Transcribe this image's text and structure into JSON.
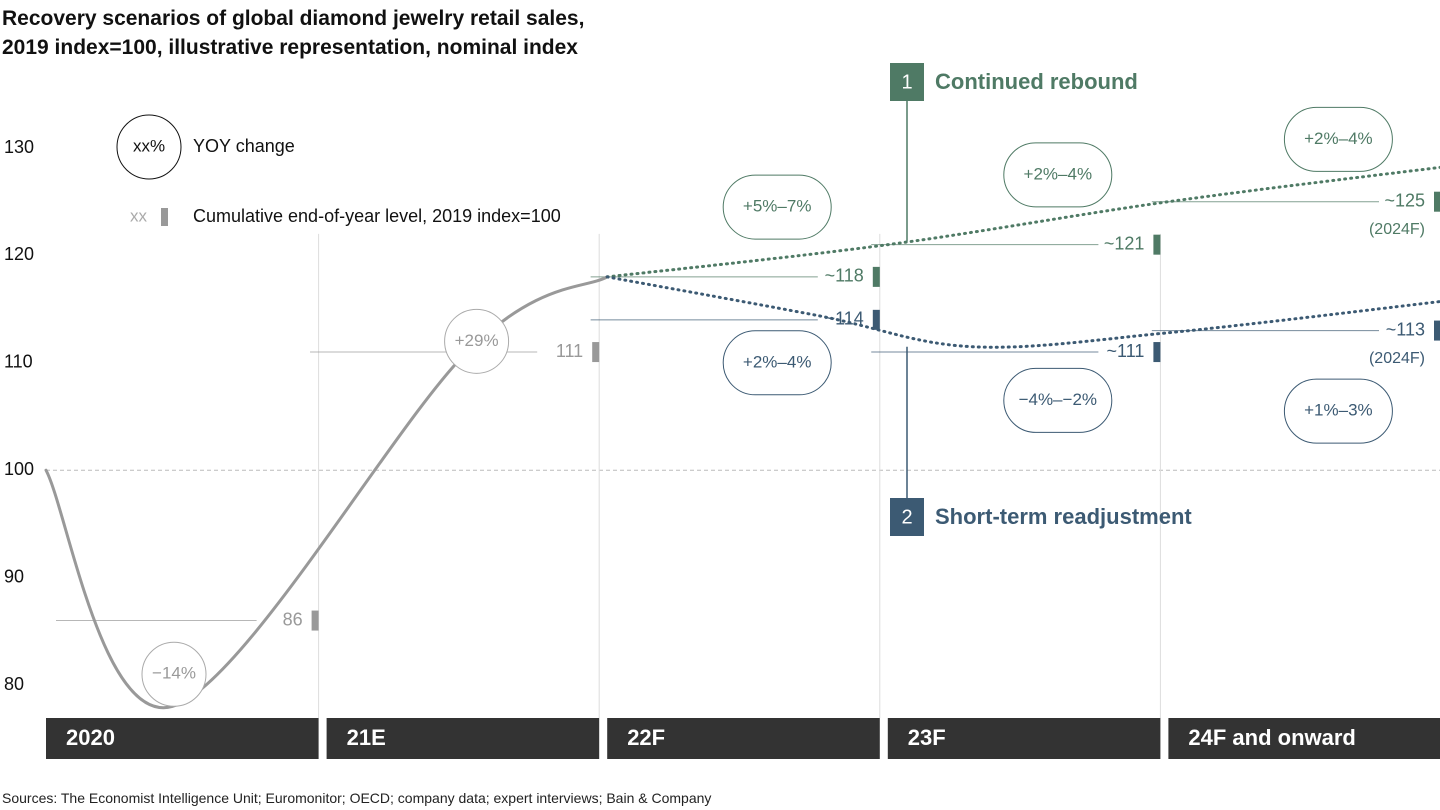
{
  "title": {
    "line1": "Recovery scenarios of global diamond jewelry retail sales,",
    "line2": "2019 index=100, illustrative representation, nominal index"
  },
  "source": "Sources: The Economist Intelligence Unit; Euromonitor; OECD; company data; expert interviews; Bain & Company",
  "legend": {
    "bubble_sample": "xx%",
    "bubble_label": "YOY change",
    "level_sample": "xx",
    "level_label": "Cumulative end-of-year level, 2019 index=100"
  },
  "colors": {
    "base": "#999999",
    "rebound": "#4f7a65",
    "readjust": "#3c5a73",
    "period_bar": "#333333"
  },
  "chart_data": {
    "type": "line",
    "ylim": [
      75,
      132
    ],
    "yticks": [
      80,
      90,
      100,
      110,
      120,
      130
    ],
    "reference_line": 100,
    "periods": [
      "2020",
      "21E",
      "22F",
      "23F",
      "24F and onward"
    ],
    "series": [
      {
        "scenario": "base",
        "points": [
          [
            0,
            100
          ],
          [
            0.45,
            78
          ],
          [
            1.5,
            111
          ],
          [
            2,
            118
          ]
        ]
      },
      {
        "name": "Continued rebound",
        "number": "1",
        "scenario": "rebound",
        "points": [
          [
            2,
            118
          ],
          [
            3,
            121
          ],
          [
            4,
            125
          ],
          [
            5,
            128.3
          ]
        ]
      },
      {
        "name": "Short-term readjustment",
        "number": "2",
        "scenario": "readjust",
        "points": [
          [
            2,
            118
          ],
          [
            2.75,
            114.4
          ],
          [
            3.3,
            111.5
          ],
          [
            4,
            112.8
          ],
          [
            5,
            115.8
          ]
        ]
      }
    ],
    "end_levels": [
      {
        "label": "86",
        "value": 86,
        "period": 0,
        "scenario": "base"
      },
      {
        "label": "111",
        "value": 111,
        "period": 1,
        "scenario": "base"
      },
      {
        "label": "~118",
        "value": 118,
        "period": 2,
        "scenario": "rebound"
      },
      {
        "label": "~114",
        "value": 114,
        "period": 2,
        "scenario": "readjust"
      },
      {
        "label": "~121",
        "value": 121,
        "period": 3,
        "scenario": "rebound"
      },
      {
        "label": "~111",
        "value": 111,
        "period": 3,
        "scenario": "readjust"
      },
      {
        "label": "~125",
        "sublabel": "(2024F)",
        "value": 125,
        "period": 4,
        "scenario": "rebound"
      },
      {
        "label": "~113",
        "sublabel": "(2024F)",
        "value": 113,
        "period": 4,
        "scenario": "readjust"
      }
    ],
    "yoy_bubbles": [
      {
        "label": "−14%",
        "period": 0,
        "value": 81,
        "scenario": "base",
        "shape": "circle"
      },
      {
        "label": "+29%",
        "period": 1,
        "value": 112,
        "scenario": "base",
        "shape": "circle"
      },
      {
        "label": "+5%–7%",
        "period": 2,
        "value": 124.5,
        "scenario": "rebound",
        "shape": "pill"
      },
      {
        "label": "+2%–4%",
        "period": 2,
        "value": 110,
        "scenario": "readjust",
        "shape": "pill"
      },
      {
        "label": "+2%–4%",
        "period": 3,
        "value": 127.5,
        "scenario": "rebound",
        "shape": "pill"
      },
      {
        "label": "−4%–−2%",
        "period": 3,
        "value": 106.5,
        "scenario": "readjust",
        "shape": "pill"
      },
      {
        "label": "+2%–4%",
        "period": 4,
        "value": 130.8,
        "scenario": "rebound",
        "shape": "pill"
      },
      {
        "label": "+1%–3%",
        "period": 4,
        "value": 105.5,
        "scenario": "readjust",
        "shape": "pill"
      }
    ]
  }
}
